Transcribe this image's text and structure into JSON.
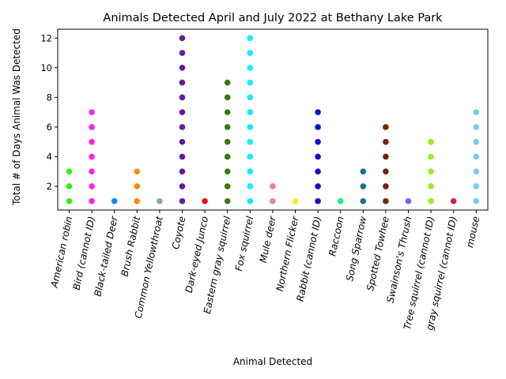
{
  "chart_data": {
    "type": "scatter",
    "title": "Animals Detected April and July 2022 at Bethany Lake Park",
    "xlabel": "Animal Detected",
    "ylabel": "Total # of Days Animal Was Detected",
    "ylim": [
      0.4,
      12.6
    ],
    "yticks": [
      2,
      4,
      6,
      8,
      10,
      12
    ],
    "grid": false,
    "legend": "none",
    "categories": [
      "American robin",
      "Bird (cannot ID)",
      "Black-tailed Deer",
      "Brush Rabbit",
      "Common Yellowthroat",
      "Coyote",
      "Dark-eyed Junco",
      "Eastern gray squirrel",
      "Fox squirrel",
      "Mule deer",
      "Northern Flicker",
      "Rabbit (cannot ID)",
      "Raccoon",
      "Song Sparrow",
      "Spotted Towhee",
      "Swainson's Thrush",
      "Tree squirrel (cannot ID)",
      "gray squirrel (cannot ID)",
      "mouse"
    ],
    "series": [
      {
        "category": "American robin",
        "color": "#33ee11",
        "values": [
          1,
          2,
          3
        ]
      },
      {
        "category": "Bird (cannot ID)",
        "color": "#ff22ee",
        "values": [
          1,
          2,
          3,
          4,
          5,
          6,
          7
        ]
      },
      {
        "category": "Black-tailed Deer",
        "color": "#1188ee",
        "values": [
          1
        ]
      },
      {
        "category": "Brush Rabbit",
        "color": "#ff8811",
        "values": [
          1,
          2,
          3
        ]
      },
      {
        "category": "Common Yellowthroat",
        "color": "#77bb77",
        "values": [
          1
        ]
      },
      {
        "category": "Coyote",
        "color": "#661c99",
        "values": [
          1,
          2,
          3,
          4,
          5,
          6,
          7,
          8,
          9,
          10,
          11,
          12
        ]
      },
      {
        "category": "Dark-eyed Junco",
        "color": "#ee1111",
        "values": [
          1
        ]
      },
      {
        "category": "Eastern gray squirrel",
        "color": "#3a7a0a",
        "values": [
          1,
          2,
          3,
          4,
          5,
          6,
          7,
          8,
          9
        ]
      },
      {
        "category": "Fox squirrel",
        "color": "#11eeff",
        "values": [
          1,
          2,
          3,
          4,
          5,
          6,
          7,
          8,
          9,
          10,
          11,
          12
        ]
      },
      {
        "category": "Mule deer",
        "color": "#ee77cc",
        "values": [
          1,
          2
        ]
      },
      {
        "category": "Northern Flicker",
        "color": "#ffee11",
        "values": [
          1
        ]
      },
      {
        "category": "Rabbit (cannot ID)",
        "color": "#1111cc",
        "values": [
          1,
          2,
          3,
          4,
          5,
          6,
          7
        ]
      },
      {
        "category": "Raccoon",
        "color": "#22ee77",
        "values": [
          1
        ]
      },
      {
        "category": "Song Sparrow",
        "color": "#117788",
        "values": [
          1,
          2,
          3
        ]
      },
      {
        "category": "Spotted Towhee",
        "color": "#7a2208",
        "values": [
          1,
          2,
          3,
          4,
          5,
          6
        ]
      },
      {
        "category": "Swainson's Thrush",
        "color": "#7766dd",
        "values": [
          1
        ]
      },
      {
        "category": "Tree squirrel (cannot ID)",
        "color": "#99ee22",
        "values": [
          1,
          2,
          3,
          4,
          5
        ]
      },
      {
        "category": "gray squirrel (cannot ID)",
        "color": "#cc2255",
        "values": [
          1
        ]
      },
      {
        "category": "mouse",
        "color": "#77ccee",
        "values": [
          1,
          2,
          3,
          4,
          5,
          6,
          7
        ]
      }
    ]
  }
}
